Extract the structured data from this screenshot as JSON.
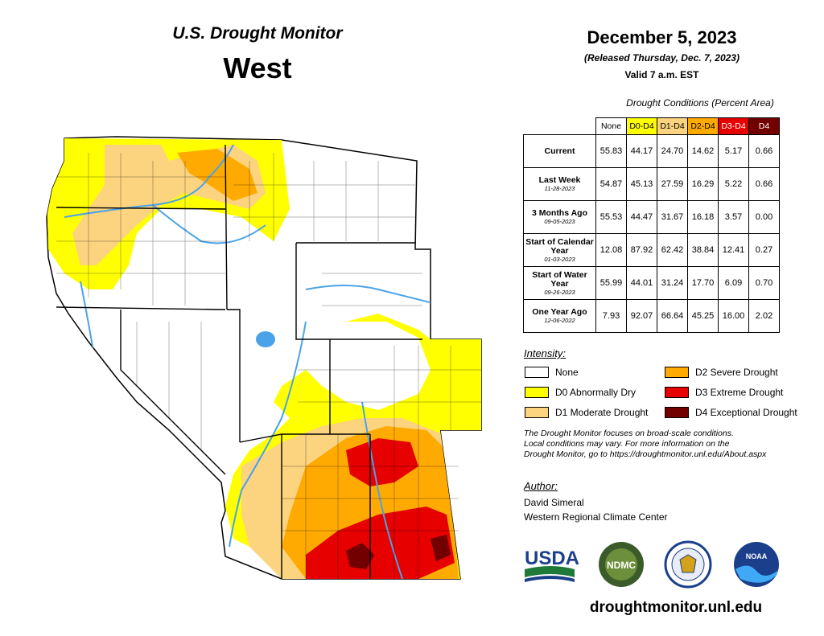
{
  "header": {
    "title_line1": "U.S. Drought Monitor",
    "title_line2": "West",
    "date": "December 5, 2023",
    "released": "(Released Thursday, Dec. 7, 2023)",
    "valid": "Valid 7 a.m. EST"
  },
  "table": {
    "caption": "Drought Conditions (Percent Area)",
    "columns": [
      "None",
      "D0-D4",
      "D1-D4",
      "D2-D4",
      "D3-D4",
      "D4"
    ],
    "rows": [
      {
        "label": "Current",
        "date": "",
        "values": [
          "55.83",
          "44.17",
          "24.70",
          "14.62",
          "5.17",
          "0.66"
        ]
      },
      {
        "label": "Last Week",
        "date": "11-28-2023",
        "values": [
          "54.87",
          "45.13",
          "27.59",
          "16.29",
          "5.22",
          "0.66"
        ]
      },
      {
        "label": "3 Months Ago",
        "date": "09-05-2023",
        "values": [
          "55.53",
          "44.47",
          "31.67",
          "16.18",
          "3.57",
          "0.00"
        ]
      },
      {
        "label": "Start of Calendar Year",
        "date": "01-03-2023",
        "values": [
          "12.08",
          "87.92",
          "62.42",
          "38.84",
          "12.41",
          "0.27"
        ]
      },
      {
        "label": "Start of Water Year",
        "date": "09-26-2023",
        "values": [
          "55.99",
          "44.01",
          "31.24",
          "17.70",
          "6.09",
          "0.70"
        ]
      },
      {
        "label": "One Year Ago",
        "date": "12-06-2022",
        "values": [
          "7.93",
          "92.07",
          "66.64",
          "45.25",
          "16.00",
          "2.02"
        ]
      }
    ]
  },
  "legend": {
    "heading": "Intensity:",
    "items": [
      {
        "label": "None",
        "color": "#ffffff"
      },
      {
        "label": "D0 Abnormally Dry",
        "color": "#ffff00"
      },
      {
        "label": "D1 Moderate Drought",
        "color": "#fcd37f"
      },
      {
        "label": "D2 Severe Drought",
        "color": "#ffaa00"
      },
      {
        "label": "D3 Extreme Drought",
        "color": "#e60000"
      },
      {
        "label": "D4 Exceptional Drought",
        "color": "#730000"
      }
    ]
  },
  "footnote": {
    "line1": "The Drought Monitor focuses on broad-scale conditions.",
    "line2": "Local conditions may vary. For more information on the",
    "line3": "Drought Monitor, go to https://droughtmonitor.unl.edu/About.aspx"
  },
  "author": {
    "heading": "Author:",
    "name": "David Simeral",
    "organization": "Western Regional Climate Center"
  },
  "logos": {
    "usda": "USDA",
    "ndmc": "NDMC",
    "noaa": "NOAA",
    "commerce_icon": "department-of-commerce-seal"
  },
  "website": "droughtmonitor.unl.edu",
  "map": {
    "colors": {
      "none": "#ffffff",
      "d0": "#ffff00",
      "d1": "#fcd37f",
      "d2": "#ffaa00",
      "d3": "#e60000",
      "d4": "#730000",
      "water": "#4aa3e8"
    }
  }
}
